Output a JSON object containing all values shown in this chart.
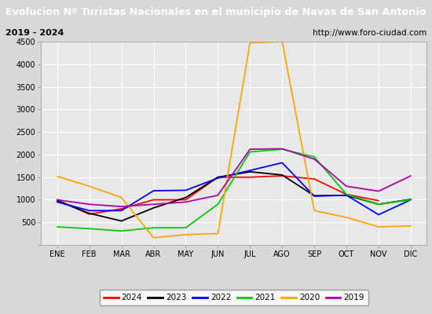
{
  "title": "Evolucion Nº Turistas Nacionales en el municipio de Navas de San Antonio",
  "subtitle_left": "2019 - 2024",
  "subtitle_right": "http://www.foro-ciudad.com",
  "months": [
    "ENE",
    "FEB",
    "MAR",
    "ABR",
    "MAY",
    "JUN",
    "JUL",
    "AGO",
    "SEP",
    "OCT",
    "NOV",
    "DIC"
  ],
  "series": {
    "2024": [
      1000,
      680,
      800,
      1000,
      1000,
      1500,
      1500,
      1530,
      1460,
      1120,
      980,
      null
    ],
    "2023": [
      980,
      700,
      530,
      820,
      1050,
      1500,
      1620,
      1550,
      1090,
      1100,
      900,
      1010
    ],
    "2022": [
      950,
      760,
      760,
      1200,
      1210,
      1480,
      1650,
      1820,
      1080,
      1100,
      670,
      1000
    ],
    "2021": [
      400,
      360,
      310,
      380,
      380,
      900,
      2060,
      2120,
      1950,
      1120,
      900,
      1000
    ],
    "2020": [
      1520,
      1300,
      1050,
      160,
      230,
      250,
      4480,
      4500,
      760,
      610,
      400,
      420
    ],
    "2019": [
      1000,
      900,
      850,
      900,
      950,
      1100,
      2120,
      2130,
      1900,
      1300,
      1190,
      1530
    ]
  },
  "colors": {
    "2024": "#ff0000",
    "2023": "#000000",
    "2022": "#0000ff",
    "2021": "#00cc00",
    "2020": "#ffa500",
    "2019": "#aa00aa"
  },
  "ylim": [
    0,
    4500
  ],
  "yticks": [
    0,
    500,
    1000,
    1500,
    2000,
    2500,
    3000,
    3500,
    4000,
    4500
  ],
  "title_bg": "#2d5fa8",
  "title_color": "#ffffff",
  "plot_bg": "#e8e8e8",
  "grid_color": "#ffffff",
  "outer_bg": "#d8d8d8",
  "legend_order": [
    "2024",
    "2023",
    "2022",
    "2021",
    "2020",
    "2019"
  ]
}
